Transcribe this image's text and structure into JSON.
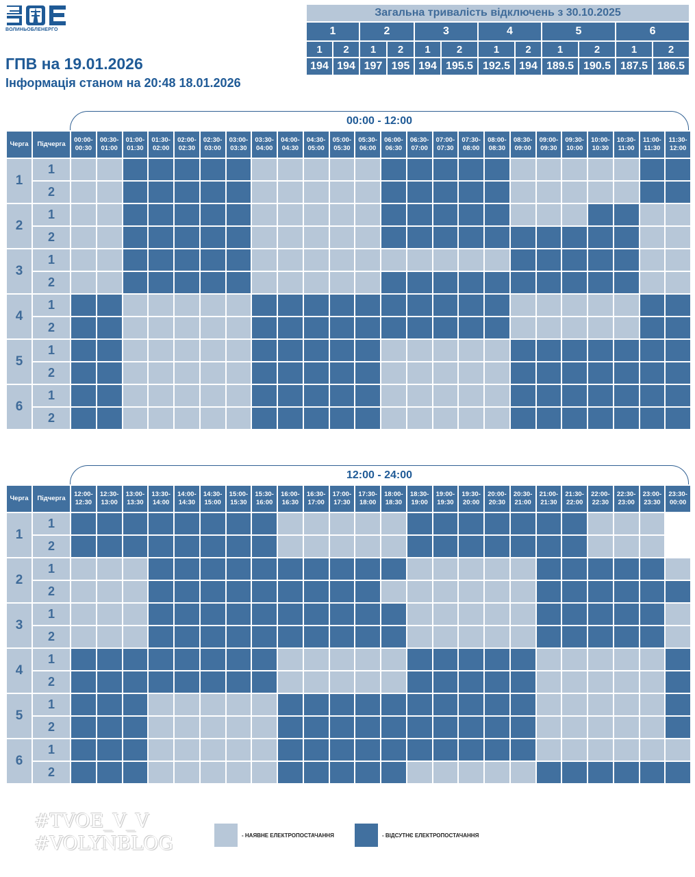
{
  "logo": {
    "caption": "ВОЛИНЬОБЛЕНЕРГО",
    "icon": "zoe-logo"
  },
  "title": "ГПВ на 19.01.2026",
  "subtitle": "Інформація станом на 20:48 18.01.2026",
  "totals": {
    "heading": "Загальна тривалість відключень з 30.10.2025",
    "queues": [
      "1",
      "2",
      "3",
      "4",
      "5",
      "6"
    ],
    "subqueues": [
      "1",
      "2",
      "1",
      "2",
      "1",
      "2",
      "1",
      "2",
      "1",
      "2",
      "1",
      "2"
    ],
    "values": [
      "194",
      "194",
      "197",
      "195",
      "194",
      "195.5",
      "192.5",
      "194",
      "189.5",
      "190.5",
      "187.5",
      "186.5"
    ]
  },
  "colors": {
    "on": "#b7c7d8",
    "off": "#41709f",
    "accent": "#1f5a96"
  },
  "schedule": {
    "queue_header": "Черга",
    "subqueue_header": "Підчерга",
    "blocks": [
      {
        "range": "00:00 - 12:00",
        "slots": [
          [
            "00:00-",
            "00:30"
          ],
          [
            "00:30-",
            "01:00"
          ],
          [
            "01:00-",
            "01:30"
          ],
          [
            "01:30-",
            "02:00"
          ],
          [
            "02:00-",
            "02:30"
          ],
          [
            "02:30-",
            "03:00"
          ],
          [
            "03:00-",
            "03:30"
          ],
          [
            "03:30-",
            "04:00"
          ],
          [
            "04:00-",
            "04:30"
          ],
          [
            "04:30-",
            "05:00"
          ],
          [
            "05:00-",
            "05:30"
          ],
          [
            "05:30-",
            "06:00"
          ],
          [
            "06:00-",
            "06:30"
          ],
          [
            "06:30-",
            "07:00"
          ],
          [
            "07:00-",
            "07:30"
          ],
          [
            "07:30-",
            "08:00"
          ],
          [
            "08:00-",
            "08:30"
          ],
          [
            "08:30-",
            "09:00"
          ],
          [
            "09:00-",
            "09:30"
          ],
          [
            "09:30-",
            "10:00"
          ],
          [
            "10:00-",
            "10:30"
          ],
          [
            "10:30-",
            "11:00"
          ],
          [
            "11:00-",
            "11:30"
          ],
          [
            "11:30-",
            "12:00"
          ]
        ],
        "rows": [
          {
            "queue": "1",
            "sub": "1",
            "cells": "001111100000111110000011"
          },
          {
            "queue": "1",
            "sub": "2",
            "cells": "001111100000111110000011"
          },
          {
            "queue": "2",
            "sub": "1",
            "cells": "001111100000111110001100"
          },
          {
            "queue": "2",
            "sub": "2",
            "cells": "001111100000111111111100"
          },
          {
            "queue": "3",
            "sub": "1",
            "cells": "001111100000000001111100"
          },
          {
            "queue": "3",
            "sub": "2",
            "cells": "001111100000111111111100"
          },
          {
            "queue": "4",
            "sub": "1",
            "cells": "110000011111111110000011"
          },
          {
            "queue": "4",
            "sub": "2",
            "cells": "110000011111111110000011"
          },
          {
            "queue": "5",
            "sub": "1",
            "cells": "110000011111000001111111"
          },
          {
            "queue": "5",
            "sub": "2",
            "cells": "110000011111000001111111"
          },
          {
            "queue": "6",
            "sub": "1",
            "cells": "110000011111000001111111"
          },
          {
            "queue": "6",
            "sub": "2",
            "cells": "110000011111000001111111"
          }
        ]
      },
      {
        "range": "12:00 - 24:00",
        "slots": [
          [
            "12:00-",
            "12:30"
          ],
          [
            "12:30-",
            "13:00"
          ],
          [
            "13:00-",
            "13:30"
          ],
          [
            "13:30-",
            "14:00"
          ],
          [
            "14:00-",
            "14:30"
          ],
          [
            "14:30-",
            "15:00"
          ],
          [
            "15:00-",
            "15:30"
          ],
          [
            "15:30-",
            "16:00"
          ],
          [
            "16:00-",
            "16:30"
          ],
          [
            "16:30-",
            "17:00"
          ],
          [
            "17:00-",
            "17:30"
          ],
          [
            "17:30-",
            "18:00"
          ],
          [
            "18:00-",
            "18:30"
          ],
          [
            "18:30-",
            "19:00"
          ],
          [
            "19:00-",
            "19:30"
          ],
          [
            "19:30-",
            "20:00"
          ],
          [
            "20:00-",
            "20:30"
          ],
          [
            "20:30-",
            "21:00"
          ],
          [
            "21:00-",
            "21:30"
          ],
          [
            "21:30-",
            "22:00"
          ],
          [
            "22:00-",
            "22:30"
          ],
          [
            "22:30-",
            "23:00"
          ],
          [
            "23:00-",
            "23:30"
          ],
          [
            "23:30-",
            "00:00"
          ]
        ],
        "rows": [
          {
            "queue": "1",
            "sub": "1",
            "cells": "11111111000001111111000x"
          },
          {
            "queue": "1",
            "sub": "2",
            "cells": "11111111000001111111000x"
          },
          {
            "queue": "2",
            "sub": "1",
            "cells": "000111111111100000111110"
          },
          {
            "queue": "2",
            "sub": "2",
            "cells": "000111111111000000111111"
          },
          {
            "queue": "3",
            "sub": "1",
            "cells": "000111111111100000111110"
          },
          {
            "queue": "3",
            "sub": "2",
            "cells": "000111111111100000111110"
          },
          {
            "queue": "4",
            "sub": "1",
            "cells": "111111110000011111000001"
          },
          {
            "queue": "4",
            "sub": "2",
            "cells": "111111110000011111000001"
          },
          {
            "queue": "5",
            "sub": "1",
            "cells": "111000001111111111000001"
          },
          {
            "queue": "5",
            "sub": "2",
            "cells": "111000001111111111000001"
          },
          {
            "queue": "6",
            "sub": "1",
            "cells": "111000001111111111000000"
          },
          {
            "queue": "6",
            "sub": "2",
            "cells": "111000001111100000111111"
          }
        ]
      }
    ]
  },
  "legend": {
    "available": "- НАЯВНЕ ЕЛЕКТРОПОСТАЧАННЯ",
    "absent": "- ВІДСУТНЄ ЕЛЕКТРОПОСТАЧАННЯ"
  },
  "watermark": [
    "#TVOE_V_V",
    "#VOLYNBLOG"
  ]
}
